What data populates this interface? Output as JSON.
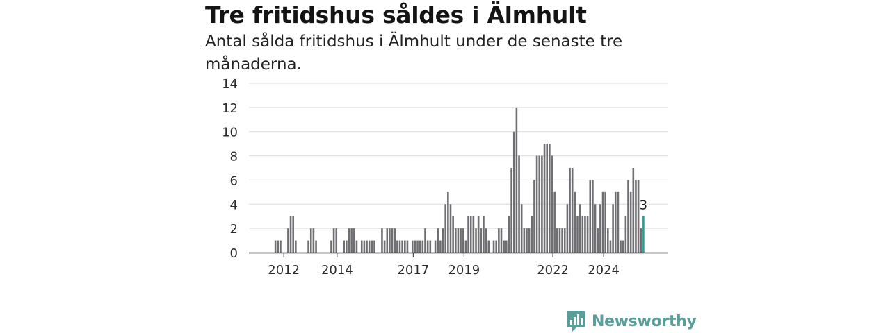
{
  "header": {
    "title": "Tre fritidshus såldes i Älmhult",
    "subtitle": "Antal sålda fritidshus i Älmhult under de senaste tre månaderna."
  },
  "brand": {
    "name": "Newsworthy",
    "color": "#5a9e9a",
    "icon": "bar-chart-speech-bubble-icon"
  },
  "chart_data": {
    "type": "bar",
    "title": "Tre fritidshus såldes i Älmhult",
    "subtitle": "Antal sålda fritidshus i Älmhult under de senaste tre månaderna.",
    "xlabel": "",
    "ylabel": "",
    "ylim": [
      0,
      14
    ],
    "y_ticks": [
      0,
      2,
      4,
      6,
      8,
      10,
      12,
      14
    ],
    "x_ticks": [
      "2012",
      "2014",
      "2017",
      "2019",
      "2022",
      "2024"
    ],
    "x_tick_index": [
      6,
      27,
      57,
      77,
      112,
      132
    ],
    "grid": true,
    "bar_color": "#6f6f73",
    "highlight_color": "#2a9d8f",
    "highlight_label": "3",
    "values": [
      0,
      0,
      0,
      0,
      0,
      0,
      0,
      0,
      0,
      1,
      1,
      1,
      0,
      0,
      2,
      3,
      3,
      1,
      0,
      0,
      0,
      0,
      1,
      2,
      2,
      1,
      0,
      0,
      0,
      0,
      0,
      1,
      2,
      2,
      0,
      0,
      1,
      1,
      2,
      2,
      2,
      1,
      0,
      1,
      1,
      1,
      1,
      1,
      1,
      0,
      0,
      2,
      1,
      2,
      2,
      2,
      2,
      1,
      1,
      1,
      1,
      1,
      0,
      1,
      1,
      1,
      1,
      1,
      2,
      1,
      1,
      0,
      1,
      2,
      1,
      2,
      4,
      5,
      4,
      3,
      2,
      2,
      2,
      2,
      1,
      3,
      3,
      3,
      2,
      3,
      2,
      3,
      2,
      1,
      0,
      1,
      1,
      2,
      2,
      1,
      1,
      3,
      7,
      10,
      12,
      8,
      4,
      2,
      2,
      2,
      3,
      6,
      8,
      8,
      8,
      9,
      9,
      9,
      8,
      5,
      2,
      2,
      2,
      2,
      4,
      7,
      7,
      5,
      3,
      4,
      3,
      3,
      3,
      6,
      6,
      4,
      2,
      4,
      5,
      5,
      2,
      1,
      4,
      5,
      5,
      1,
      1,
      3,
      6,
      5,
      7,
      6,
      6,
      2,
      3
    ]
  }
}
